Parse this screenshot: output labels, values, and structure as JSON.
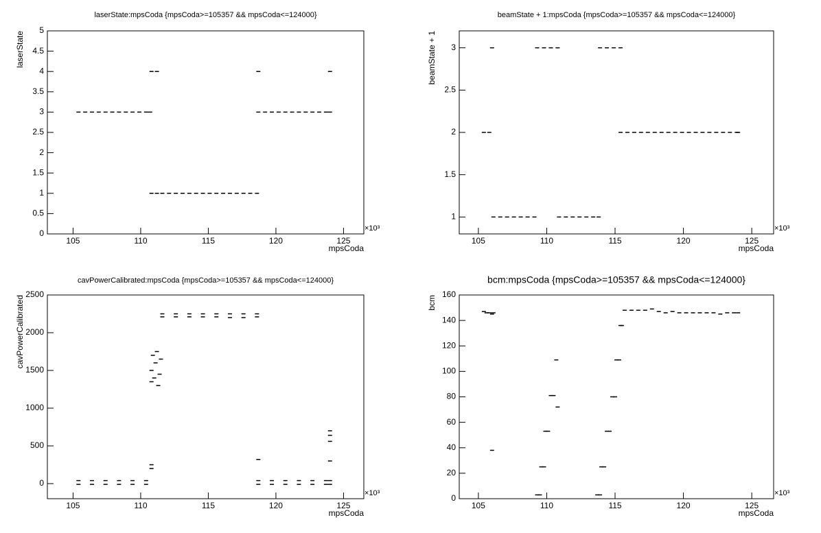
{
  "chart_data": [
    {
      "type": "scatter",
      "title": "laserState:mpsCoda {mpsCoda>=105357 && mpsCoda<=124000}",
      "xlabel": "mpsCoda",
      "ylabel": "laserState",
      "x_multiplier": "×10³",
      "color": "#000000",
      "xlim": [
        103.1,
        126.5
      ],
      "ylim": [
        0,
        5
      ],
      "xticks": [
        105,
        110,
        115,
        120,
        125
      ],
      "yticks": [
        0,
        0.5,
        1,
        1.5,
        2,
        2.5,
        3,
        3.5,
        4,
        4.5,
        5
      ],
      "x": [
        105.4,
        105.9,
        106.4,
        106.9,
        107.4,
        107.9,
        108.4,
        108.9,
        109.4,
        109.9,
        110.4,
        110.7,
        110.8,
        111.2,
        110.8,
        111.2,
        111.6,
        112.1,
        112.6,
        113.1,
        113.6,
        114.1,
        114.6,
        115.1,
        115.6,
        116.1,
        116.6,
        117.1,
        117.6,
        118.1,
        118.6,
        118.7,
        124.0,
        118.7,
        119.2,
        119.7,
        120.2,
        120.7,
        121.2,
        121.7,
        122.2,
        122.7,
        123.2,
        123.7,
        124.0
      ],
      "values": [
        3,
        3,
        3,
        3,
        3,
        3,
        3,
        3,
        3,
        3,
        3,
        3,
        4,
        4,
        1,
        1,
        1,
        1,
        1,
        1,
        1,
        1,
        1,
        1,
        1,
        1,
        1,
        1,
        1,
        1,
        1,
        4,
        4,
        3,
        3,
        3,
        3,
        3,
        3,
        3,
        3,
        3,
        3,
        3,
        3
      ]
    },
    {
      "type": "scatter",
      "title": "beamState + 1:mpsCoda {mpsCoda>=105357 && mpsCoda<=124000}",
      "xlabel": "mpsCoda",
      "ylabel": "beamState + 1",
      "x_multiplier": "×10³",
      "color": "#000000",
      "xlim": [
        103.6,
        126.6
      ],
      "ylim": [
        0.8,
        3.2
      ],
      "xticks": [
        105,
        110,
        115,
        120,
        125
      ],
      "yticks": [
        1,
        1.5,
        2,
        2.5,
        3
      ],
      "x": [
        105.4,
        105.8,
        106.0,
        106.1,
        106.6,
        107.1,
        107.6,
        108.1,
        108.6,
        109.1,
        109.3,
        109.8,
        110.3,
        110.8,
        110.9,
        111.4,
        111.9,
        112.4,
        112.9,
        113.4,
        113.8,
        113.9,
        114.4,
        114.9,
        115.4,
        115.4,
        115.9,
        116.4,
        116.9,
        117.4,
        117.9,
        118.4,
        118.9,
        119.4,
        119.9,
        120.4,
        120.9,
        121.4,
        121.9,
        122.4,
        122.9,
        123.4,
        123.9,
        124.0
      ],
      "values": [
        2,
        2,
        3,
        1,
        1,
        1,
        1,
        1,
        1,
        1,
        3,
        3,
        3,
        3,
        1,
        1,
        1,
        1,
        1,
        1,
        1,
        3,
        3,
        3,
        3,
        2,
        2,
        2,
        2,
        2,
        2,
        2,
        2,
        2,
        2,
        2,
        2,
        2,
        2,
        2,
        2,
        2,
        2,
        2
      ]
    },
    {
      "type": "scatter",
      "title": "cavPowerCalibrated:mpsCoda {mpsCoda>=105357 && mpsCoda<=124000}",
      "xlabel": "mpsCoda",
      "ylabel": "cavPowerCalibrated",
      "x_multiplier": "×10³",
      "color": "#000000",
      "xlim": [
        103.1,
        126.5
      ],
      "ylim": [
        -200,
        2500
      ],
      "xticks": [
        105,
        110,
        115,
        120,
        125
      ],
      "yticks": [
        0,
        500,
        1000,
        1500,
        2000,
        2500
      ],
      "x": [
        105.4,
        106.4,
        107.4,
        108.4,
        109.4,
        110.4,
        105.4,
        106.4,
        107.4,
        108.4,
        109.4,
        110.4,
        110.8,
        110.8,
        110.9,
        111.0,
        111.1,
        111.2,
        111.3,
        111.4,
        111.5,
        110.8,
        110.8,
        111.6,
        112.6,
        113.6,
        114.6,
        115.6,
        116.6,
        117.6,
        118.6,
        111.6,
        112.6,
        113.6,
        114.6,
        115.6,
        116.6,
        117.6,
        118.6,
        118.7,
        118.7,
        119.7,
        120.7,
        121.7,
        122.7,
        123.7,
        124.0,
        118.7,
        119.7,
        120.7,
        121.7,
        122.7,
        123.7,
        124.0,
        124.0,
        124.0,
        124.0,
        124.0
      ],
      "values": [
        40,
        40,
        40,
        40,
        40,
        40,
        -10,
        -10,
        -10,
        -10,
        -10,
        -10,
        1350,
        1500,
        1700,
        1400,
        1600,
        1750,
        1300,
        1450,
        1650,
        250,
        200,
        2250,
        2250,
        2250,
        2250,
        2250,
        2250,
        2250,
        2250,
        2210,
        2210,
        2210,
        2210,
        2210,
        2200,
        2200,
        2210,
        320,
        40,
        40,
        40,
        40,
        40,
        40,
        40,
        -10,
        -10,
        -10,
        -10,
        -10,
        -10,
        -10,
        700,
        640,
        560,
        300
      ]
    },
    {
      "type": "scatter",
      "title": "bcm:mpsCoda {mpsCoda>=105357 && mpsCoda<=124000}",
      "xlabel": "mpsCoda",
      "ylabel": "bcm",
      "x_multiplier": "×10³",
      "color": "#000000",
      "xlim": [
        103.6,
        126.6
      ],
      "ylim": [
        0,
        160
      ],
      "xticks": [
        105,
        110,
        115,
        120,
        125
      ],
      "yticks": [
        0,
        20,
        40,
        60,
        80,
        100,
        120,
        140,
        160
      ],
      "x": [
        105.4,
        105.6,
        105.8,
        106.0,
        106.1,
        106.0,
        109.3,
        109.5,
        109.6,
        109.8,
        109.9,
        110.1,
        110.3,
        110.5,
        110.7,
        110.8,
        113.7,
        113.9,
        114.0,
        114.2,
        114.4,
        114.6,
        114.8,
        115.0,
        115.1,
        115.3,
        115.4,
        115.5,
        115.7,
        116.2,
        116.7,
        117.2,
        117.7,
        118.2,
        118.7,
        119.2,
        119.7,
        120.2,
        120.7,
        121.2,
        121.7,
        122.2,
        122.7,
        123.2,
        123.7,
        124.0
      ],
      "values": [
        147,
        146,
        146,
        145,
        146,
        38,
        3,
        3,
        25,
        25,
        53,
        53,
        81,
        81,
        109,
        72,
        3,
        3,
        25,
        25,
        53,
        53,
        80,
        80,
        109,
        109,
        136,
        136,
        148,
        148,
        148,
        148,
        149,
        147,
        146,
        147,
        146,
        146,
        146,
        146,
        146,
        146,
        145,
        146,
        146,
        146
      ]
    }
  ]
}
